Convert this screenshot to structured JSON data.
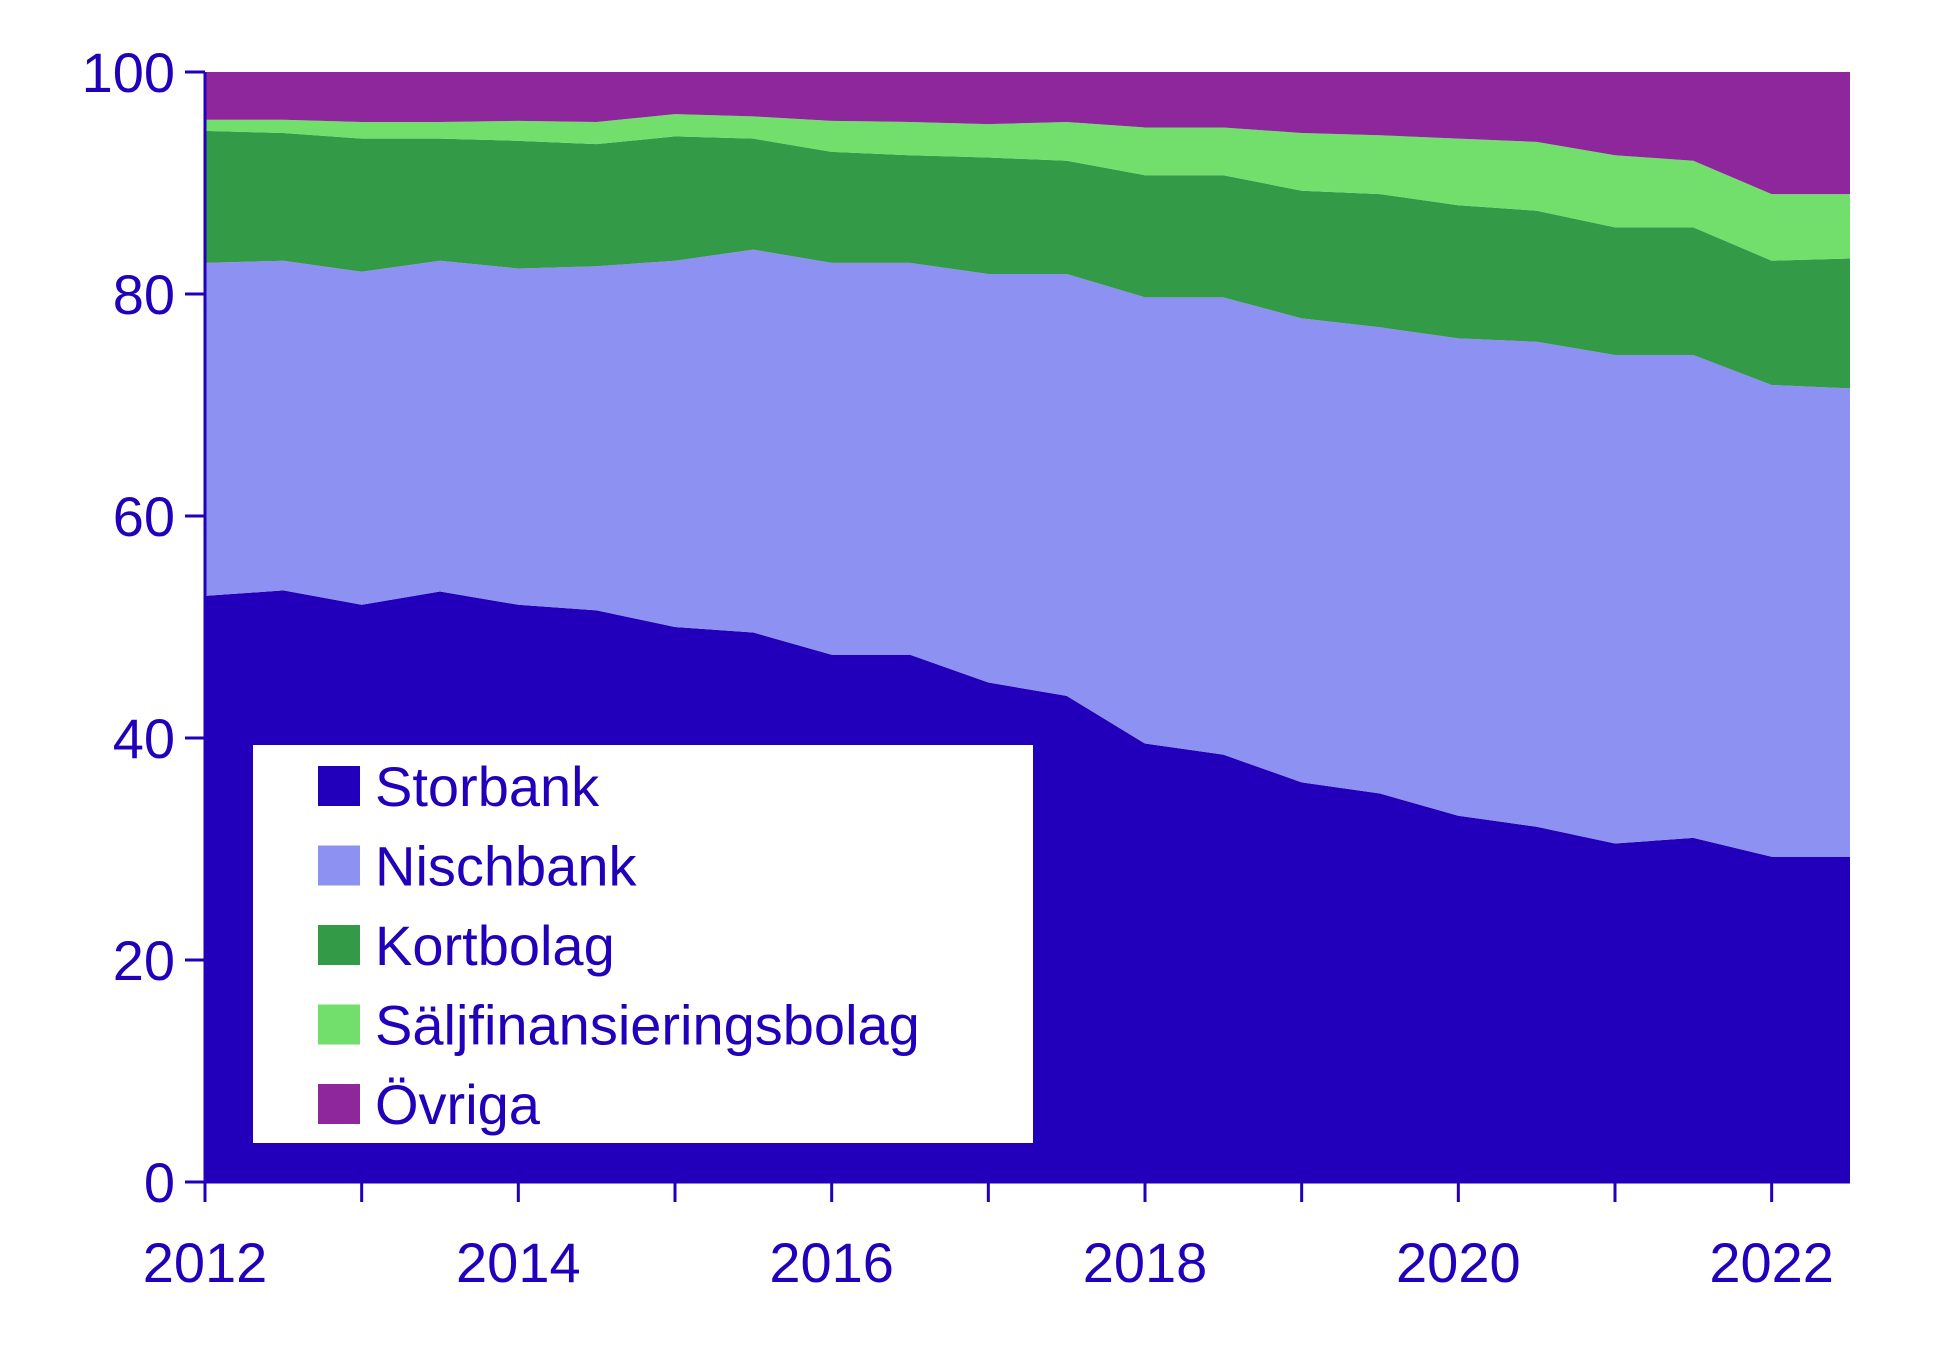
{
  "chart_data": {
    "type": "area",
    "stacked": true,
    "title": "",
    "xlabel": "",
    "ylabel": "",
    "ylim": [
      0,
      100
    ],
    "xlim": [
      2012.0,
      2022.5
    ],
    "y_ticks": [
      0,
      20,
      40,
      60,
      80,
      100
    ],
    "x_ticks": [
      2012,
      2014,
      2016,
      2018,
      2020,
      2022
    ],
    "grid": false,
    "legend_position": "bottom-left",
    "x": [
      2012.0,
      2012.5,
      2013.0,
      2013.5,
      2014.0,
      2014.5,
      2015.0,
      2015.5,
      2016.0,
      2016.5,
      2017.0,
      2017.5,
      2018.0,
      2018.5,
      2019.0,
      2019.5,
      2020.0,
      2020.5,
      2021.0,
      2021.5,
      2022.0,
      2022.5
    ],
    "series": [
      {
        "name": "Storbank",
        "color": "#2200bb",
        "values": [
          52.8,
          53.3,
          52.0,
          53.2,
          52.0,
          51.5,
          50.0,
          49.5,
          47.5,
          47.5,
          45.0,
          43.8,
          39.5,
          38.5,
          36.0,
          35.0,
          33.0,
          32.0,
          30.5,
          31.0,
          29.3,
          29.3
        ]
      },
      {
        "name": "Nischbank",
        "color": "#8d91f2",
        "values": [
          30.0,
          29.7,
          30.0,
          29.8,
          30.3,
          31.0,
          33.0,
          34.5,
          35.3,
          35.3,
          36.8,
          38.0,
          40.2,
          41.2,
          41.8,
          42.0,
          43.0,
          43.7,
          44.0,
          43.5,
          42.5,
          42.2
        ]
      },
      {
        "name": "Kortbolag",
        "color": "#339a48",
        "values": [
          11.9,
          11.5,
          12.0,
          11.0,
          11.5,
          11.0,
          11.2,
          10.0,
          10.0,
          9.7,
          10.5,
          10.2,
          11.0,
          11.0,
          11.5,
          12.0,
          12.0,
          11.8,
          11.5,
          11.5,
          11.2,
          11.7
        ]
      },
      {
        "name": "Säljfinansieringsbolag",
        "color": "#72de6c",
        "values": [
          1.0,
          1.2,
          1.5,
          1.5,
          1.8,
          2.0,
          2.0,
          2.0,
          2.8,
          3.0,
          3.0,
          3.5,
          4.3,
          4.3,
          5.2,
          5.3,
          6.0,
          6.2,
          6.5,
          6.0,
          6.0,
          5.8
        ]
      },
      {
        "name": "Övriga",
        "color": "#8e279b",
        "values": [
          4.3,
          4.3,
          4.5,
          4.5,
          4.4,
          4.5,
          3.8,
          4.0,
          4.4,
          4.5,
          4.7,
          4.5,
          5.0,
          5.0,
          5.5,
          5.7,
          6.0,
          6.3,
          7.5,
          8.0,
          11.0,
          11.0
        ]
      }
    ]
  }
}
